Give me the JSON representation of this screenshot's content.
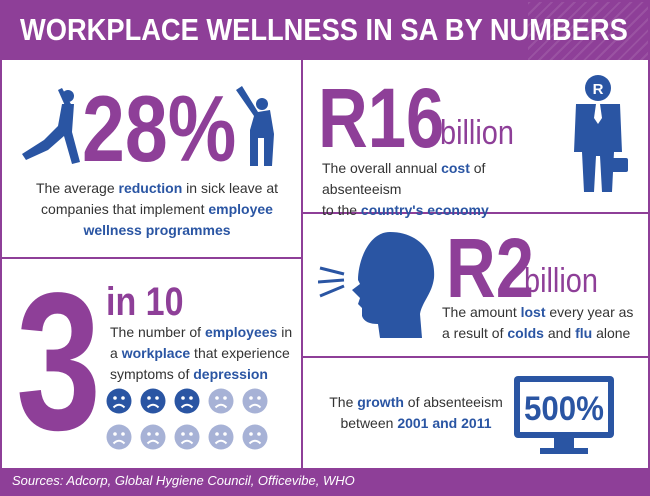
{
  "header": {
    "title": "WORKPLACE WELLNESS IN SA BY NUMBERS"
  },
  "stat_sick_leave": {
    "number": "28%",
    "line1_pre": "The average ",
    "line1_hl": "reduction",
    "line1_post": " in sick leave at",
    "line2_pre": "companies that implement ",
    "line2_hl": "employee",
    "line3_hl": "wellness programmes"
  },
  "stat_absenteeism_cost": {
    "number": "R16",
    "unit": "billion",
    "line1_pre": "The overall annual ",
    "line1_hl": "cost",
    "line1_post": " of absenteeism",
    "line2_pre": "to the ",
    "line2_hl": "country's economy",
    "icon_letter": "R"
  },
  "stat_colds_flu": {
    "number": "R2",
    "unit": "billion",
    "line1_pre": "The amount ",
    "line1_hl": "lost",
    "line1_post": " every year as",
    "line2_pre": "a result of ",
    "line2_hl1": "colds",
    "line2_mid": " and ",
    "line2_hl2": "flu",
    "line2_post": " alone"
  },
  "stat_depression": {
    "number": "3",
    "sub": "in 10",
    "line1_pre": "The number of ",
    "line1_hl": "employees",
    "line1_post": " in",
    "line2_pre": "a ",
    "line2_hl": "workplace",
    "line2_post": " that experience",
    "line3_pre": "symptoms of ",
    "line3_hl": "depression",
    "faces_total": 10,
    "faces_affected": 3
  },
  "stat_growth": {
    "monitor_text": "500%",
    "line1_pre": "The ",
    "line1_hl": "growth",
    "line1_post": " of absenteeism",
    "line2_pre": "between ",
    "line2_hl": "2001 and 2011"
  },
  "footer": {
    "sources": "Sources: Adcorp, Global Hygiene Council, Officevibe, WHO"
  },
  "colors": {
    "purple": "#8e3f98",
    "blue": "#2a55a3",
    "faded_blue": "#a7b2d6"
  }
}
